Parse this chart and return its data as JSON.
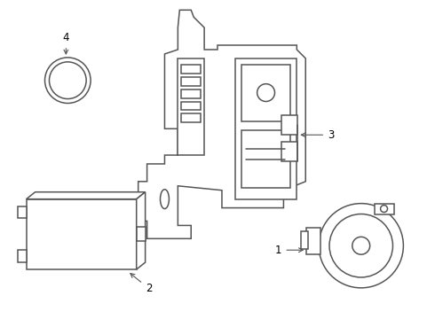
{
  "background_color": "#ffffff",
  "line_color": "#555555",
  "label_color": "#000000",
  "line_width": 1.1,
  "fig_width": 4.9,
  "fig_height": 3.6,
  "dpi": 100
}
